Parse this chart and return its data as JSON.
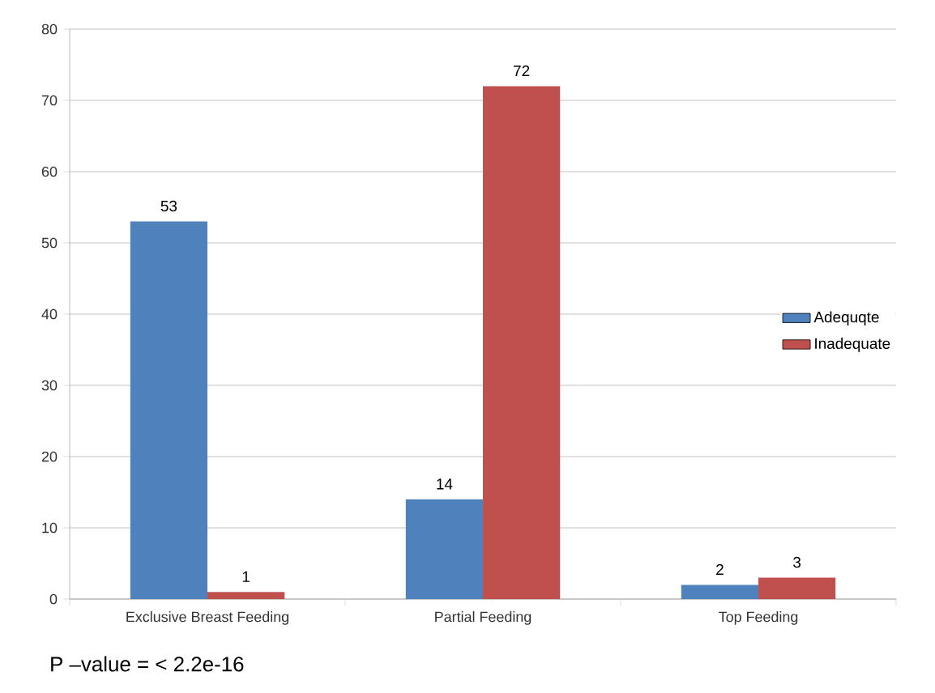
{
  "chart_data": {
    "type": "bar",
    "categories": [
      "Exclusive Breast  Feeding",
      "Partial Feeding",
      "Top Feeding"
    ],
    "series": [
      {
        "name": "Adequqte",
        "color": "#4f81bd",
        "values": [
          53,
          14,
          2
        ]
      },
      {
        "name": "Inadequate",
        "color": "#c0504d",
        "values": [
          1,
          72,
          3
        ]
      }
    ],
    "ylim": [
      0,
      80
    ],
    "yticks": [
      0,
      10,
      20,
      30,
      40,
      50,
      60,
      70,
      80
    ],
    "grid": "y",
    "legend": "right",
    "data_labels": true,
    "annotations": [
      "P –value = < 2.2e-16"
    ]
  }
}
